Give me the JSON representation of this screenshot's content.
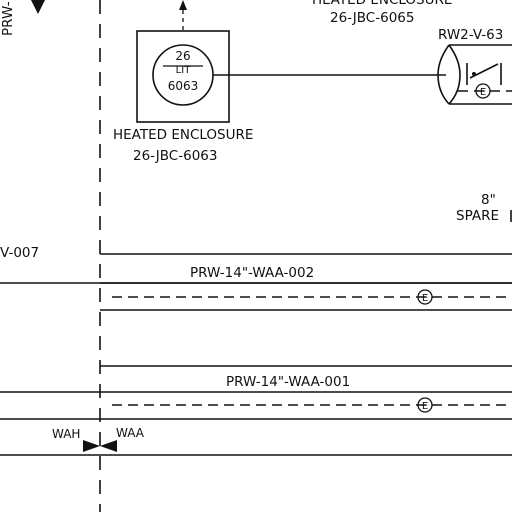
{
  "labels": {
    "instrument_tag_top": "26",
    "instrument_tag_function": "LIT",
    "instrument_tag_number": "6063",
    "enclosure_left_title": "HEATED ENCLOSURE",
    "enclosure_left_id": "26-JBC-6063",
    "enclosure_right_title": "HEATED ENCLOSURE",
    "enclosure_right_id": "26-JBC-6065",
    "valve_tag": "RW2-V-63",
    "spare_size": "8\"",
    "spare_label": "SPARE",
    "left_partial_tag": "V-007",
    "left_partial_vertical": "PRW-",
    "line_upper": "PRW-14\"-WAA-002",
    "line_lower": "PRW-14\"-WAA-001",
    "wah_label": "WAH",
    "waa_label": "WAA",
    "heat_trace_symbol": "E"
  }
}
